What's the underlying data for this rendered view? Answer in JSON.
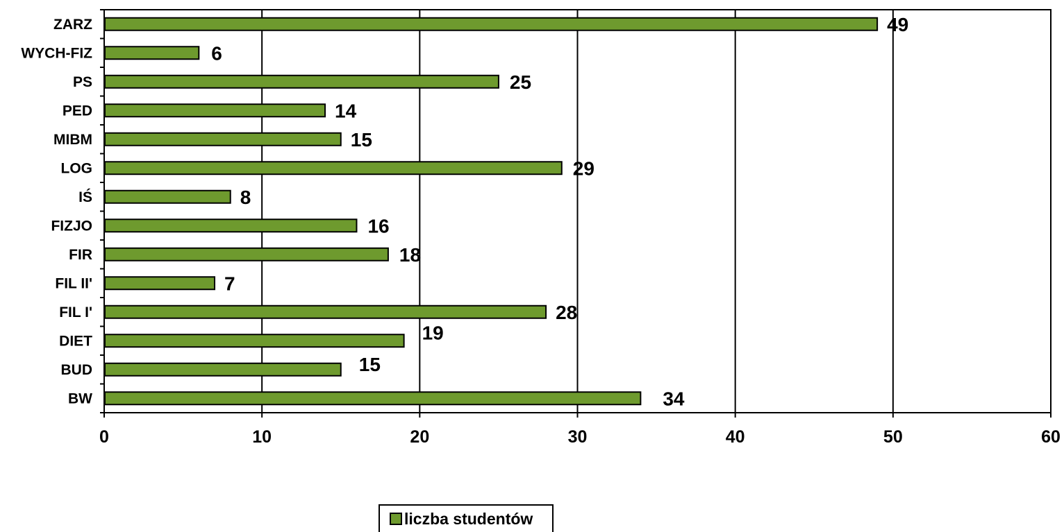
{
  "chart_data": {
    "type": "bar",
    "orientation": "horizontal",
    "categories": [
      "ZARZ",
      "WYCH-FIZ",
      "PS",
      "PED",
      "MIBM",
      "LOG",
      "IŚ",
      "FIZJO",
      "FIR",
      "FIL II'",
      "FIL I'",
      "DIET",
      "BUD",
      "BW"
    ],
    "series": [
      {
        "name": "liczba studentów",
        "values": [
          49,
          6,
          25,
          14,
          15,
          29,
          8,
          16,
          18,
          7,
          28,
          19,
          15,
          34
        ],
        "color": "#6e9a2e"
      }
    ],
    "xlim": [
      0,
      60
    ],
    "xticks": [
      0,
      10,
      20,
      30,
      40,
      50,
      60
    ],
    "grid": "vertical",
    "legend": "bottom-center",
    "data_labels": true,
    "title": "",
    "xlabel": "",
    "ylabel": ""
  }
}
